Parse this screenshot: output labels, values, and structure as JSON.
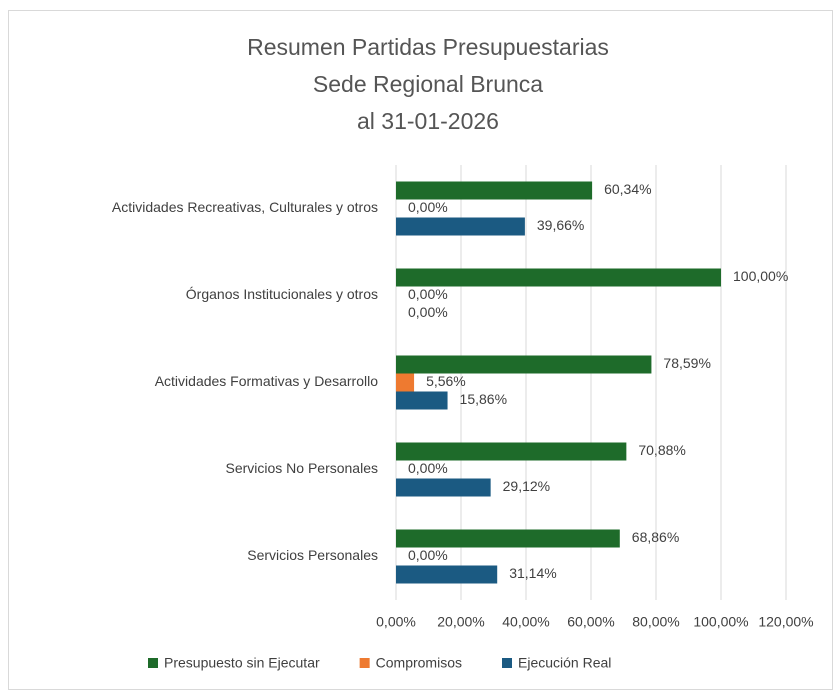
{
  "chart_data": {
    "type": "hbar",
    "title": [
      "Resumen Partidas Presupuestarias",
      "Sede Regional Brunca",
      "al 31-01-2026"
    ],
    "categories": [
      "Actividades Recreativas, Culturales y otros",
      "Órganos Institucionales y otros",
      "Actividades Formativas y Desarrollo",
      "Servicios No Personales",
      "Servicios Personales"
    ],
    "series": [
      {
        "name": "Presupuesto sin Ejecutar",
        "color": "#1e6b2a",
        "values": [
          60.34,
          100,
          78.59,
          70.88,
          68.86
        ],
        "value_labels": [
          "60,34%",
          "100,00%",
          "78,59%",
          "70,88%",
          "68,86%"
        ]
      },
      {
        "name": "Compromisos",
        "color": "#ee7a30",
        "values": [
          0,
          0,
          5.56,
          0,
          0
        ],
        "value_labels": [
          "0,00%",
          "0,00%",
          "5,56%",
          "0,00%",
          "0,00%"
        ]
      },
      {
        "name": "Ejecución Real",
        "color": "#1b5a82",
        "values": [
          39.66,
          0,
          15.86,
          29.12,
          31.14
        ],
        "value_labels": [
          "39,66%",
          "0,00%",
          "15,86%",
          "29,12%",
          "31,14%"
        ]
      }
    ],
    "xlim": [
      0,
      120
    ],
    "xticks": [
      {
        "value": 0,
        "label": "0,00%"
      },
      {
        "value": 20,
        "label": "20,00%"
      },
      {
        "value": 40,
        "label": "40,00%"
      },
      {
        "value": 60,
        "label": "60,00%"
      },
      {
        "value": 80,
        "label": "80,00%"
      },
      {
        "value": 100,
        "label": "100,00%"
      },
      {
        "value": 120,
        "label": "120,00%"
      }
    ],
    "grid": true,
    "legend": "bottom"
  }
}
